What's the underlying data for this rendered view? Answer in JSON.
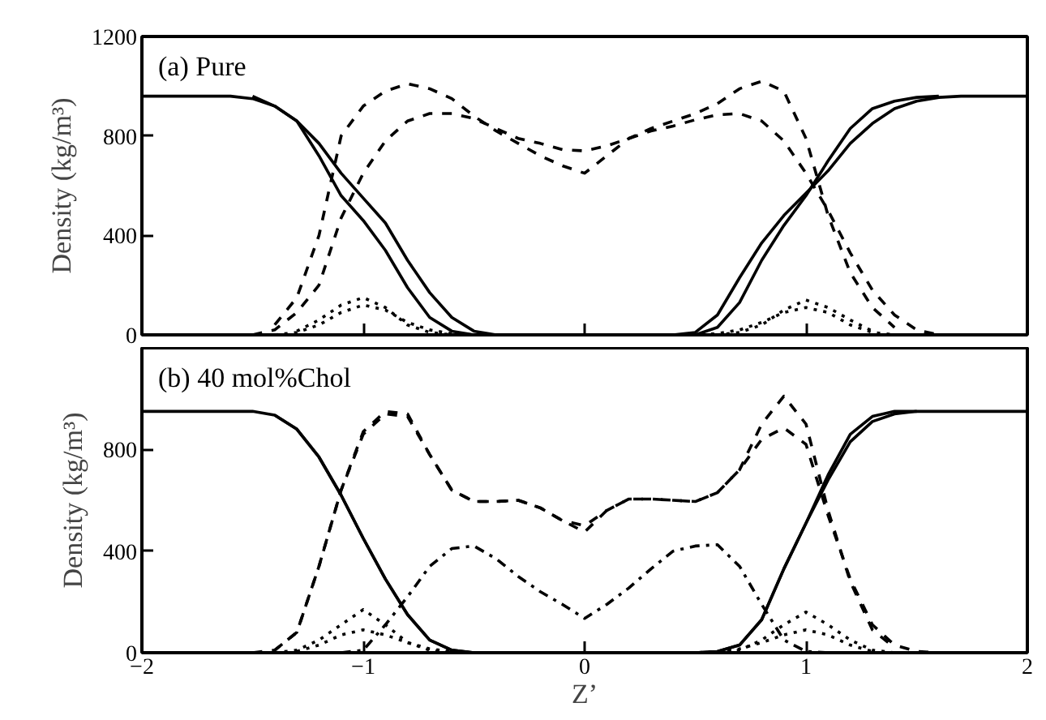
{
  "chart_data": [
    {
      "type": "line",
      "title": "(a) Pure",
      "ylabel": "Density (kg/m³)",
      "xlim": [
        -2,
        2
      ],
      "ylim": [
        0,
        1200
      ],
      "xticks": [
        -2,
        -1,
        0,
        1,
        2
      ],
      "yticks": [
        0,
        400,
        800,
        1200
      ],
      "tick_labels": "y",
      "marker": "none",
      "x": [
        -2,
        -1.9,
        -1.8,
        -1.7,
        -1.6,
        -1.5,
        -1.4,
        -1.3,
        -1.2,
        -1.1,
        -1,
        -0.9,
        -0.8,
        -0.7,
        -0.6,
        -0.5,
        -0.4,
        -0.3,
        -0.2,
        -0.1,
        0,
        0.1,
        0.2,
        0.3,
        0.4,
        0.5,
        0.6,
        0.7,
        0.8,
        0.9,
        1,
        1.1,
        1.2,
        1.3,
        1.4,
        1.5,
        1.6,
        1.7,
        1.8,
        1.9,
        2
      ],
      "series": [
        {
          "color": "#000000",
          "line_style": "solid",
          "values": [
            960,
            960,
            960,
            960,
            960,
            950,
            920,
            860,
            770,
            650,
            550,
            450,
            300,
            170,
            70,
            15,
            0,
            0,
            0,
            0,
            0,
            0,
            0,
            0,
            0,
            10,
            80,
            230,
            370,
            480,
            570,
            660,
            770,
            850,
            910,
            940,
            955,
            960,
            960,
            960,
            960
          ]
        },
        {
          "color": "#000000",
          "line_style": "solid",
          "values": [
            null,
            null,
            null,
            null,
            null,
            960,
            920,
            860,
            720,
            560,
            460,
            340,
            190,
            70,
            15,
            0,
            0,
            0,
            0,
            0,
            0,
            0,
            0,
            0,
            0,
            0,
            30,
            130,
            300,
            440,
            560,
            700,
            830,
            910,
            940,
            955,
            960,
            null,
            null,
            null,
            null
          ]
        },
        {
          "color": "#000000",
          "line_style": "dashed",
          "values": [
            null,
            null,
            null,
            null,
            null,
            0,
            20,
            90,
            200,
            470,
            650,
            780,
            860,
            890,
            890,
            870,
            830,
            790,
            770,
            745,
            740,
            760,
            790,
            820,
            840,
            865,
            885,
            890,
            860,
            780,
            650,
            500,
            330,
            180,
            80,
            20,
            0,
            null,
            null,
            null,
            null
          ]
        },
        {
          "color": "#000000",
          "line_style": "dashed",
          "values": [
            null,
            null,
            null,
            null,
            null,
            null,
            40,
            150,
            400,
            800,
            920,
            980,
            1010,
            990,
            950,
            880,
            820,
            770,
            720,
            680,
            650,
            720,
            790,
            830,
            860,
            890,
            930,
            990,
            1020,
            980,
            790,
            480,
            250,
            110,
            30,
            null,
            null,
            null,
            null,
            null,
            null
          ]
        },
        {
          "color": "#000000",
          "line_style": "dotted",
          "values": [
            null,
            null,
            null,
            null,
            null,
            null,
            0,
            10,
            40,
            90,
            120,
            100,
            50,
            20,
            5,
            0,
            0,
            0,
            0,
            0,
            0,
            0,
            0,
            0,
            0,
            0,
            5,
            20,
            50,
            90,
            110,
            90,
            40,
            10,
            0,
            null,
            null,
            null,
            null,
            null,
            null
          ]
        },
        {
          "color": "#000000",
          "line_style": "dotted",
          "values": [
            null,
            null,
            null,
            null,
            null,
            null,
            null,
            15,
            60,
            120,
            150,
            110,
            40,
            10,
            0,
            0,
            0,
            0,
            0,
            0,
            0,
            0,
            0,
            0,
            0,
            0,
            0,
            10,
            40,
            100,
            140,
            110,
            60,
            15,
            null,
            null,
            null,
            null,
            null,
            null,
            null
          ]
        }
      ]
    },
    {
      "type": "line",
      "title": "(b) 40 mol%Chol",
      "xlabel": "Z’",
      "ylabel": "Density (kg/m³)",
      "xlim": [
        -2,
        2
      ],
      "ylim": [
        0,
        1200
      ],
      "xticks": [
        -2,
        -1,
        0,
        1,
        2
      ],
      "yticks": [
        0,
        400,
        800
      ],
      "marker": "none",
      "x": [
        -2,
        -1.9,
        -1.8,
        -1.7,
        -1.6,
        -1.5,
        -1.4,
        -1.3,
        -1.2,
        -1.1,
        -1,
        -0.9,
        -0.8,
        -0.7,
        -0.6,
        -0.5,
        -0.4,
        -0.3,
        -0.2,
        -0.1,
        0,
        0.1,
        0.2,
        0.3,
        0.4,
        0.5,
        0.6,
        0.7,
        0.8,
        0.9,
        1,
        1.1,
        1.2,
        1.3,
        1.4,
        1.5,
        1.6,
        1.7,
        1.8,
        1.9,
        2
      ],
      "series": [
        {
          "color": "#000000",
          "line_style": "solid",
          "values": [
            950,
            950,
            950,
            950,
            950,
            950,
            935,
            880,
            770,
            620,
            450,
            290,
            150,
            50,
            10,
            0,
            0,
            0,
            0,
            0,
            0,
            0,
            0,
            0,
            0,
            0,
            5,
            30,
            130,
            330,
            510,
            680,
            830,
            910,
            940,
            950,
            950,
            950,
            950,
            950,
            950
          ]
        },
        {
          "color": "#000000",
          "line_style": "solid",
          "values": [
            null,
            null,
            null,
            null,
            null,
            null,
            935,
            880,
            770,
            620,
            450,
            290,
            150,
            50,
            10,
            0,
            0,
            0,
            0,
            0,
            0,
            0,
            0,
            0,
            0,
            0,
            5,
            30,
            130,
            330,
            510,
            700,
            860,
            930,
            950,
            950,
            null,
            null,
            null,
            null,
            null
          ]
        },
        {
          "color": "#000000",
          "line_style": "dashed",
          "values": [
            null,
            null,
            null,
            null,
            null,
            0,
            10,
            80,
            340,
            640,
            860,
            940,
            930,
            780,
            640,
            595,
            595,
            600,
            570,
            520,
            500,
            560,
            605,
            605,
            600,
            595,
            630,
            720,
            840,
            885,
            820,
            540,
            290,
            110,
            30,
            5,
            0,
            null,
            null,
            null,
            null
          ]
        },
        {
          "color": "#000000",
          "line_style": "dashed",
          "values": [
            null,
            null,
            null,
            null,
            null,
            null,
            10,
            80,
            340,
            640,
            870,
            950,
            940,
            780,
            640,
            595,
            595,
            600,
            570,
            520,
            475,
            560,
            605,
            605,
            600,
            595,
            630,
            720,
            900,
            1010,
            900,
            560,
            280,
            90,
            20,
            null,
            null,
            null,
            null,
            null,
            null
          ]
        },
        {
          "color": "#000000",
          "line_style": "dashdot",
          "values": [
            null,
            null,
            null,
            null,
            null,
            null,
            null,
            null,
            null,
            0,
            10,
            110,
            220,
            340,
            410,
            420,
            370,
            300,
            240,
            190,
            135,
            190,
            255,
            330,
            400,
            420,
            425,
            340,
            190,
            50,
            5,
            0,
            null,
            null,
            null,
            null,
            null,
            null,
            null,
            null,
            null
          ]
        },
        {
          "color": "#000000",
          "line_style": "dotted",
          "values": [
            null,
            null,
            null,
            null,
            null,
            null,
            0,
            10,
            50,
            110,
            170,
            110,
            40,
            10,
            0,
            0,
            0,
            0,
            0,
            0,
            0,
            0,
            0,
            0,
            0,
            0,
            0,
            10,
            50,
            110,
            160,
            110,
            50,
            10,
            0,
            null,
            null,
            null,
            null,
            null,
            null
          ]
        },
        {
          "color": "#000000",
          "line_style": "dotted",
          "values": [
            null,
            null,
            null,
            null,
            null,
            null,
            null,
            5,
            30,
            70,
            90,
            70,
            40,
            15,
            5,
            0,
            0,
            0,
            0,
            0,
            0,
            0,
            0,
            0,
            0,
            0,
            5,
            15,
            40,
            70,
            90,
            70,
            30,
            5,
            null,
            null,
            null,
            null,
            null,
            null,
            null
          ]
        }
      ]
    }
  ]
}
